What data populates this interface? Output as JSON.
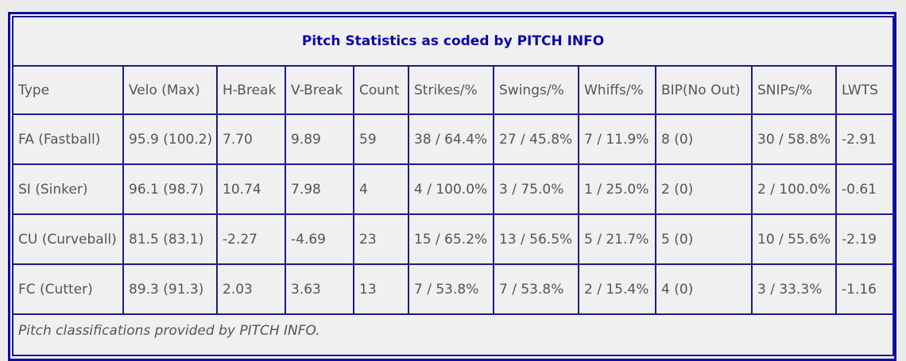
{
  "table": {
    "title": "Pitch Statistics as coded by PITCH INFO",
    "headers": [
      "Type",
      "Velo (Max)",
      "H-Break",
      "V-Break",
      "Count",
      "Strikes/%",
      "Swings/%",
      "Whiffs/%",
      "BIP(No Out)",
      "SNIPs/%",
      "LWTS"
    ],
    "rows": [
      [
        "FA (Fastball)",
        "95.9 (100.2)",
        "7.70",
        "9.89",
        "59",
        "38 / 64.4%",
        "27 / 45.8%",
        "7 / 11.9%",
        "8 (0)",
        "30 / 58.8%",
        "-2.91"
      ],
      [
        "SI (Sinker)",
        "96.1 (98.7)",
        "10.74",
        "7.98",
        "4",
        "4 / 100.0%",
        "3 / 75.0%",
        "1 / 25.0%",
        "2 (0)",
        "2 / 100.0%",
        "-0.61"
      ],
      [
        "CU (Curveball)",
        "81.5 (83.1)",
        "-2.27",
        "-4.69",
        "23",
        "15 / 65.2%",
        "13 / 56.5%",
        "5 / 21.7%",
        "5 (0)",
        "10 / 55.6%",
        "-2.19"
      ],
      [
        "FC (Cutter)",
        "89.3 (91.3)",
        "2.03",
        "3.63",
        "13",
        "7 / 53.8%",
        "7 / 53.8%",
        "2 / 15.4%",
        "4 (0)",
        "3 / 33.3%",
        "-1.16"
      ]
    ],
    "footnote": "Pitch classifications provided by PITCH INFO."
  },
  "colors": {
    "border": "#0a0aa8",
    "title": "#0a0aa8",
    "text": "#555555",
    "background": "#f0f0f0"
  }
}
